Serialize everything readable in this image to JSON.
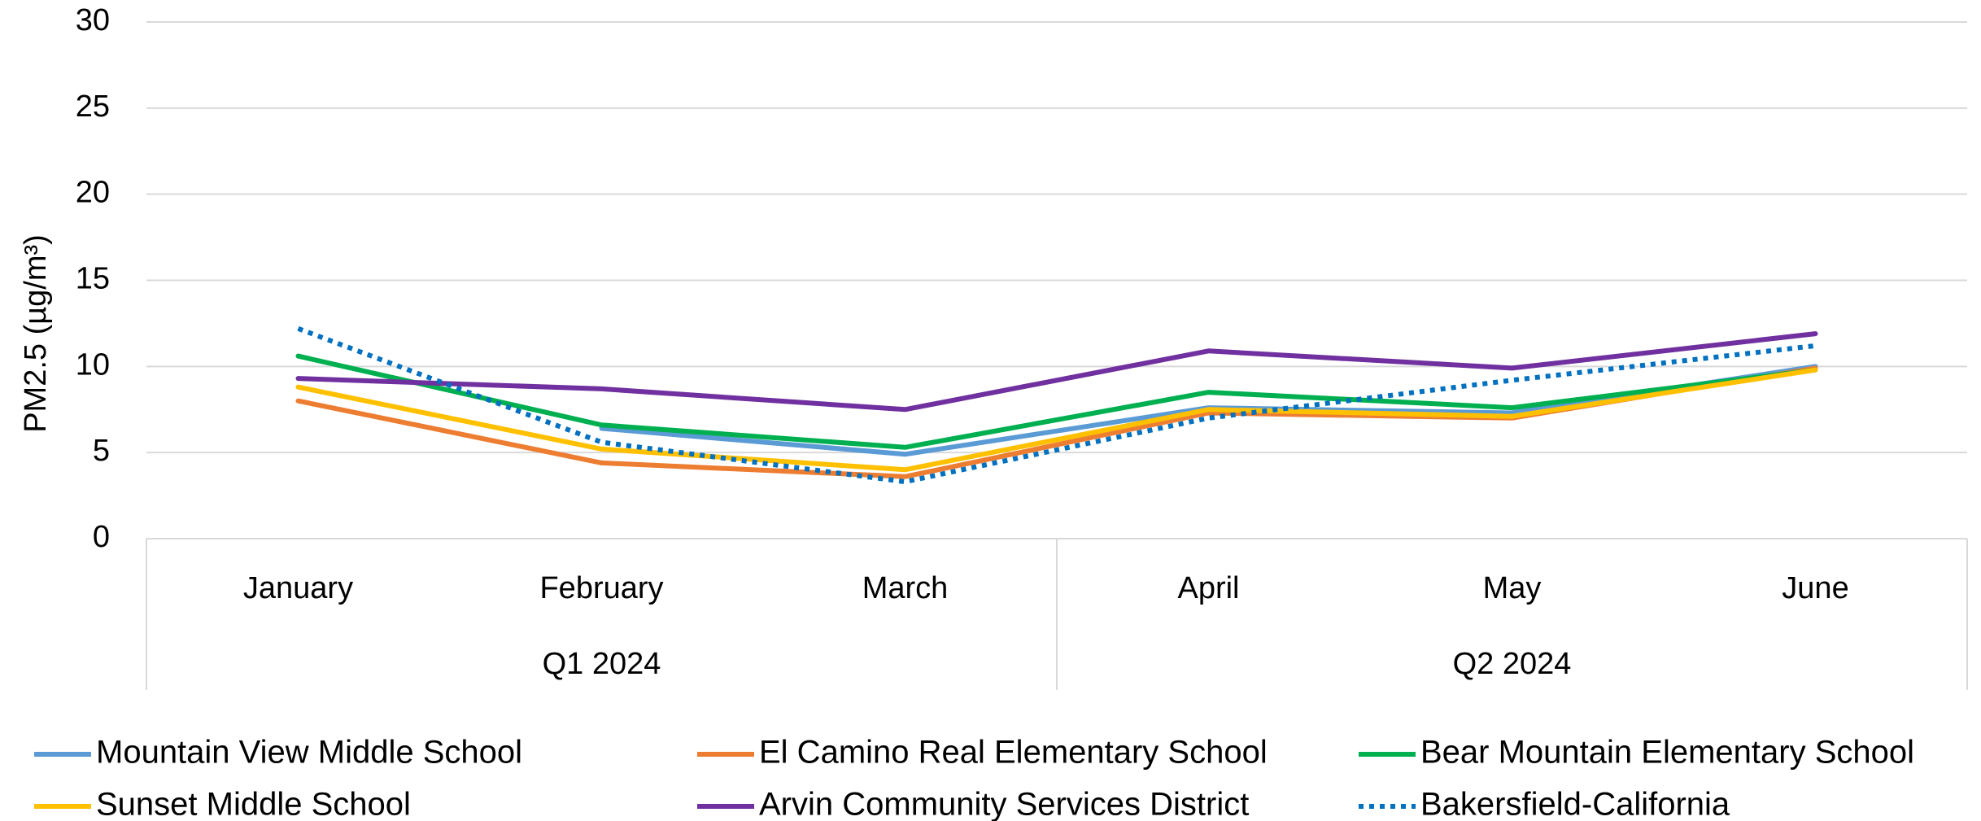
{
  "chart_data": {
    "type": "line",
    "title": "",
    "xlabel": "",
    "ylabel": "PM2.5 (µg/m³)",
    "ylim": [
      0,
      30
    ],
    "y_ticks": [
      0,
      5,
      10,
      15,
      20,
      25,
      30
    ],
    "grid": "horizontal",
    "legend_position": "bottom",
    "categories": [
      "January",
      "February",
      "March",
      "April",
      "May",
      "June"
    ],
    "groups": [
      {
        "label": "Q1 2024",
        "categories": [
          "January",
          "February",
          "March"
        ]
      },
      {
        "label": "Q2 2024",
        "categories": [
          "April",
          "May",
          "June"
        ]
      }
    ],
    "series": [
      {
        "name": "Mountain View Middle School",
        "color": "#5B9BD5",
        "dash": "solid",
        "values": [
          null,
          6.4,
          4.9,
          7.6,
          7.3,
          10.0
        ]
      },
      {
        "name": "El Camino Real Elementary School",
        "color": "#ED7D31",
        "dash": "solid",
        "values": [
          8.0,
          4.4,
          3.6,
          7.3,
          7.0,
          9.9
        ]
      },
      {
        "name": "Bear Mountain Elementary School",
        "color": "#00B050",
        "dash": "solid",
        "values": [
          10.6,
          6.6,
          5.3,
          8.5,
          7.6,
          9.8
        ]
      },
      {
        "name": "Sunset Middle School",
        "color": "#FFC000",
        "dash": "solid",
        "values": [
          8.8,
          5.2,
          4.0,
          7.5,
          7.1,
          9.8
        ]
      },
      {
        "name": "Arvin Community Services District",
        "color": "#7030A0",
        "dash": "solid",
        "values": [
          9.3,
          8.7,
          7.5,
          10.9,
          9.9,
          11.9
        ]
      },
      {
        "name": "Bakersfield-California",
        "color": "#0070C0",
        "dash": "dotted",
        "values": [
          12.2,
          5.6,
          3.3,
          7.0,
          9.2,
          11.2
        ]
      }
    ]
  }
}
